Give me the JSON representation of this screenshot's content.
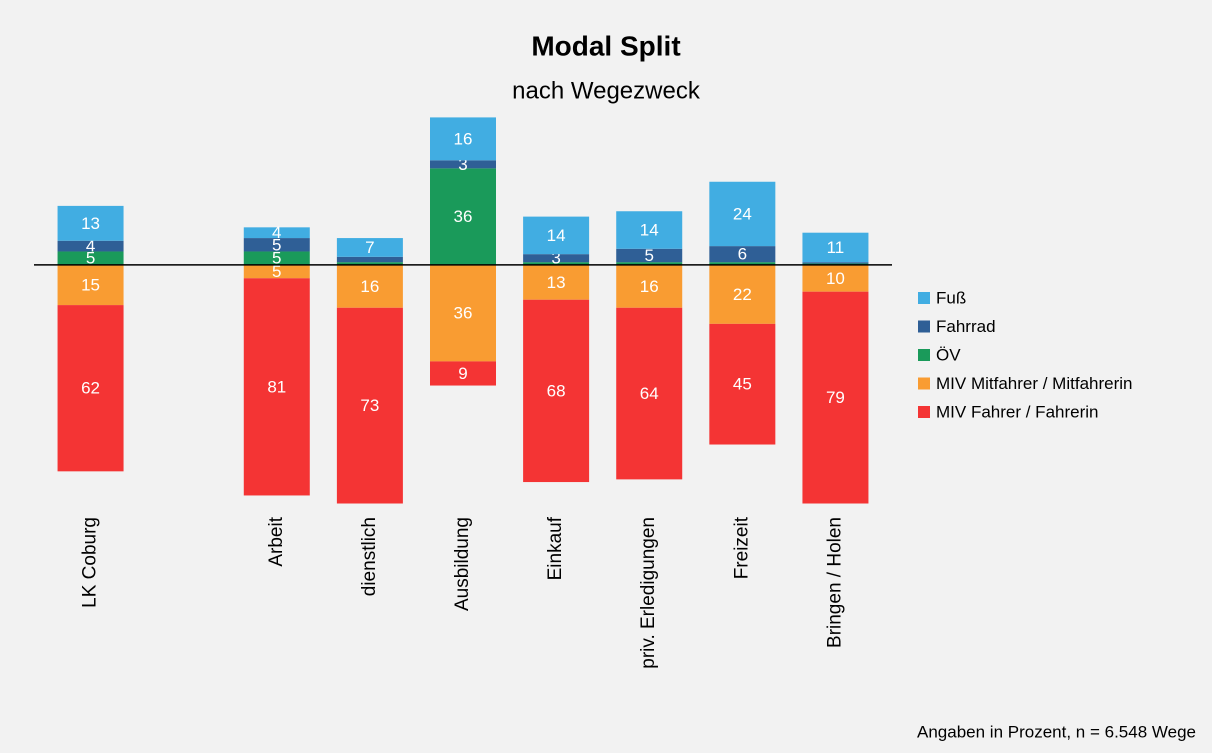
{
  "chart_data": {
    "type": "diverging_stacked_bar",
    "title": "Modal Split",
    "subtitle": "nach Wegezweck",
    "note": "Angaben in Prozent, n = 6.548 Wege",
    "categories": [
      "LK Coburg",
      null,
      "Arbeit",
      "dienstlich",
      "Ausbildung",
      "Einkauf",
      "priv. Erledigungen",
      "Freizeit",
      "Bringen / Holen"
    ],
    "ylim": [
      -100,
      60
    ],
    "legend": "right",
    "series": [
      {
        "name": "Fuß",
        "color": "#41ade2",
        "side": "positive",
        "values": [
          13,
          null,
          4,
          7,
          16,
          14,
          14,
          24,
          11
        ],
        "value_labels": [
          "13",
          null,
          "4",
          "7",
          "16",
          "14",
          "14",
          "24",
          "11"
        ]
      },
      {
        "name": "Fahrrad",
        "color": "#2f5f96",
        "side": "positive",
        "values": [
          4,
          null,
          5,
          2,
          3,
          3,
          5,
          6,
          0.5
        ],
        "value_labels": [
          "4",
          null,
          "5",
          null,
          "3",
          "3",
          "5",
          "6",
          null
        ]
      },
      {
        "name": "ÖV",
        "color": "#1a9a5a",
        "side": "positive",
        "values": [
          5,
          null,
          5,
          1,
          36,
          1,
          1,
          1,
          0.5
        ],
        "value_labels": [
          "5",
          null,
          "5",
          null,
          "36",
          null,
          null,
          null,
          null
        ]
      },
      {
        "name": "MIV Mitfahrer / Mitfahrerin",
        "color": "#f99c32",
        "side": "negative",
        "values": [
          15,
          null,
          5,
          16,
          36,
          13,
          16,
          22,
          10
        ],
        "value_labels": [
          "15",
          null,
          "5",
          "16",
          "36",
          "13",
          "16",
          "22",
          "10"
        ]
      },
      {
        "name": "MIV Fahrer / Fahrerin",
        "color": "#f43434",
        "side": "negative",
        "values": [
          62,
          null,
          81,
          73,
          9,
          68,
          64,
          45,
          79
        ],
        "value_labels": [
          "62",
          null,
          "81",
          "73",
          "9",
          "68",
          "64",
          "45",
          "79"
        ]
      }
    ]
  }
}
